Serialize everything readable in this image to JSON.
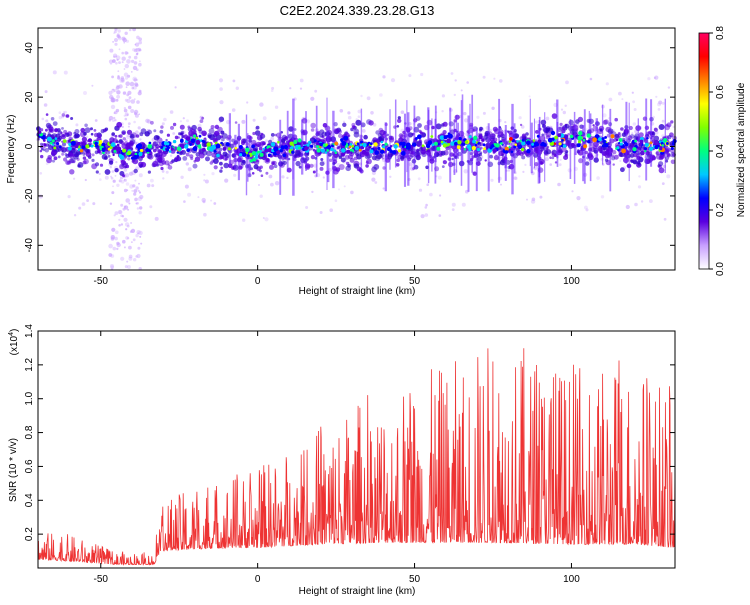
{
  "figure": {
    "title": "C2E2.2024.339.23.28.G13"
  },
  "chart_data": [
    {
      "type": "heatmap",
      "name": "spectrogram",
      "xlabel": "Height of straight line (km)",
      "ylabel": "Frequency (Hz)",
      "xlim": [
        -70,
        133
      ],
      "ylim": [
        -50,
        48
      ],
      "xticks": [
        -50,
        0,
        50,
        100
      ],
      "yticks": [
        -40,
        -20,
        0,
        20,
        40
      ],
      "colorbar": {
        "label": "Normalized spectral amplitude",
        "range": [
          0,
          0.8
        ],
        "ticks": [
          "0.0",
          "0.2",
          "0.4",
          "0.6",
          "0.8"
        ],
        "colors": [
          "#ffffff",
          "#c8a0ff",
          "#5a00e0",
          "#0000ff",
          "#00c8ff",
          "#00ff80",
          "#80ff00",
          "#ffff00",
          "#ff8000",
          "#ff0000",
          "#ff0060"
        ]
      },
      "band_center": [
        {
          "x": -70,
          "y": 4
        },
        {
          "x": -60,
          "y": 0
        },
        {
          "x": -50,
          "y": 0
        },
        {
          "x": -40,
          "y": -2
        },
        {
          "x": -30,
          "y": -1
        },
        {
          "x": -20,
          "y": 2
        },
        {
          "x": -10,
          "y": -2
        },
        {
          "x": 0,
          "y": -3
        },
        {
          "x": 10,
          "y": 0
        },
        {
          "x": 20,
          "y": 0
        },
        {
          "x": 40,
          "y": 0
        },
        {
          "x": 60,
          "y": 2
        },
        {
          "x": 80,
          "y": 0
        },
        {
          "x": 100,
          "y": 3
        },
        {
          "x": 115,
          "y": 1
        },
        {
          "x": 133,
          "y": 0
        }
      ]
    },
    {
      "type": "line",
      "name": "snr",
      "xlabel": "Height of straight line (km)",
      "ylabel": "SNR (10 * v/v)",
      "scale_label": "(x10",
      "scale_exp": "4",
      "scale_close": ")",
      "xlim": [
        -70,
        133
      ],
      "ylim": [
        0,
        1.4
      ],
      "xticks": [
        -50,
        0,
        50,
        100
      ],
      "yticks": [
        "0.2",
        "0.4",
        "0.6",
        "0.8",
        "1.0",
        "1.2",
        "1.4"
      ],
      "color": "#ee3333",
      "envelope": [
        {
          "x": -70,
          "base": 0.05,
          "peak": 0.22
        },
        {
          "x": -60,
          "base": 0.04,
          "peak": 0.2
        },
        {
          "x": -45,
          "base": 0.02,
          "peak": 0.1
        },
        {
          "x": -33,
          "base": 0.02,
          "peak": 0.09
        },
        {
          "x": -31,
          "base": 0.1,
          "peak": 0.4
        },
        {
          "x": -10,
          "base": 0.12,
          "peak": 0.55
        },
        {
          "x": 0,
          "base": 0.12,
          "peak": 0.6
        },
        {
          "x": 20,
          "base": 0.14,
          "peak": 0.85
        },
        {
          "x": 40,
          "base": 0.15,
          "peak": 1.1
        },
        {
          "x": 60,
          "base": 0.15,
          "peak": 1.2
        },
        {
          "x": 75,
          "base": 0.15,
          "peak": 1.4
        },
        {
          "x": 100,
          "base": 0.14,
          "peak": 1.2
        },
        {
          "x": 120,
          "base": 0.14,
          "peak": 1.25
        },
        {
          "x": 133,
          "base": 0.12,
          "peak": 1.05
        }
      ]
    }
  ]
}
